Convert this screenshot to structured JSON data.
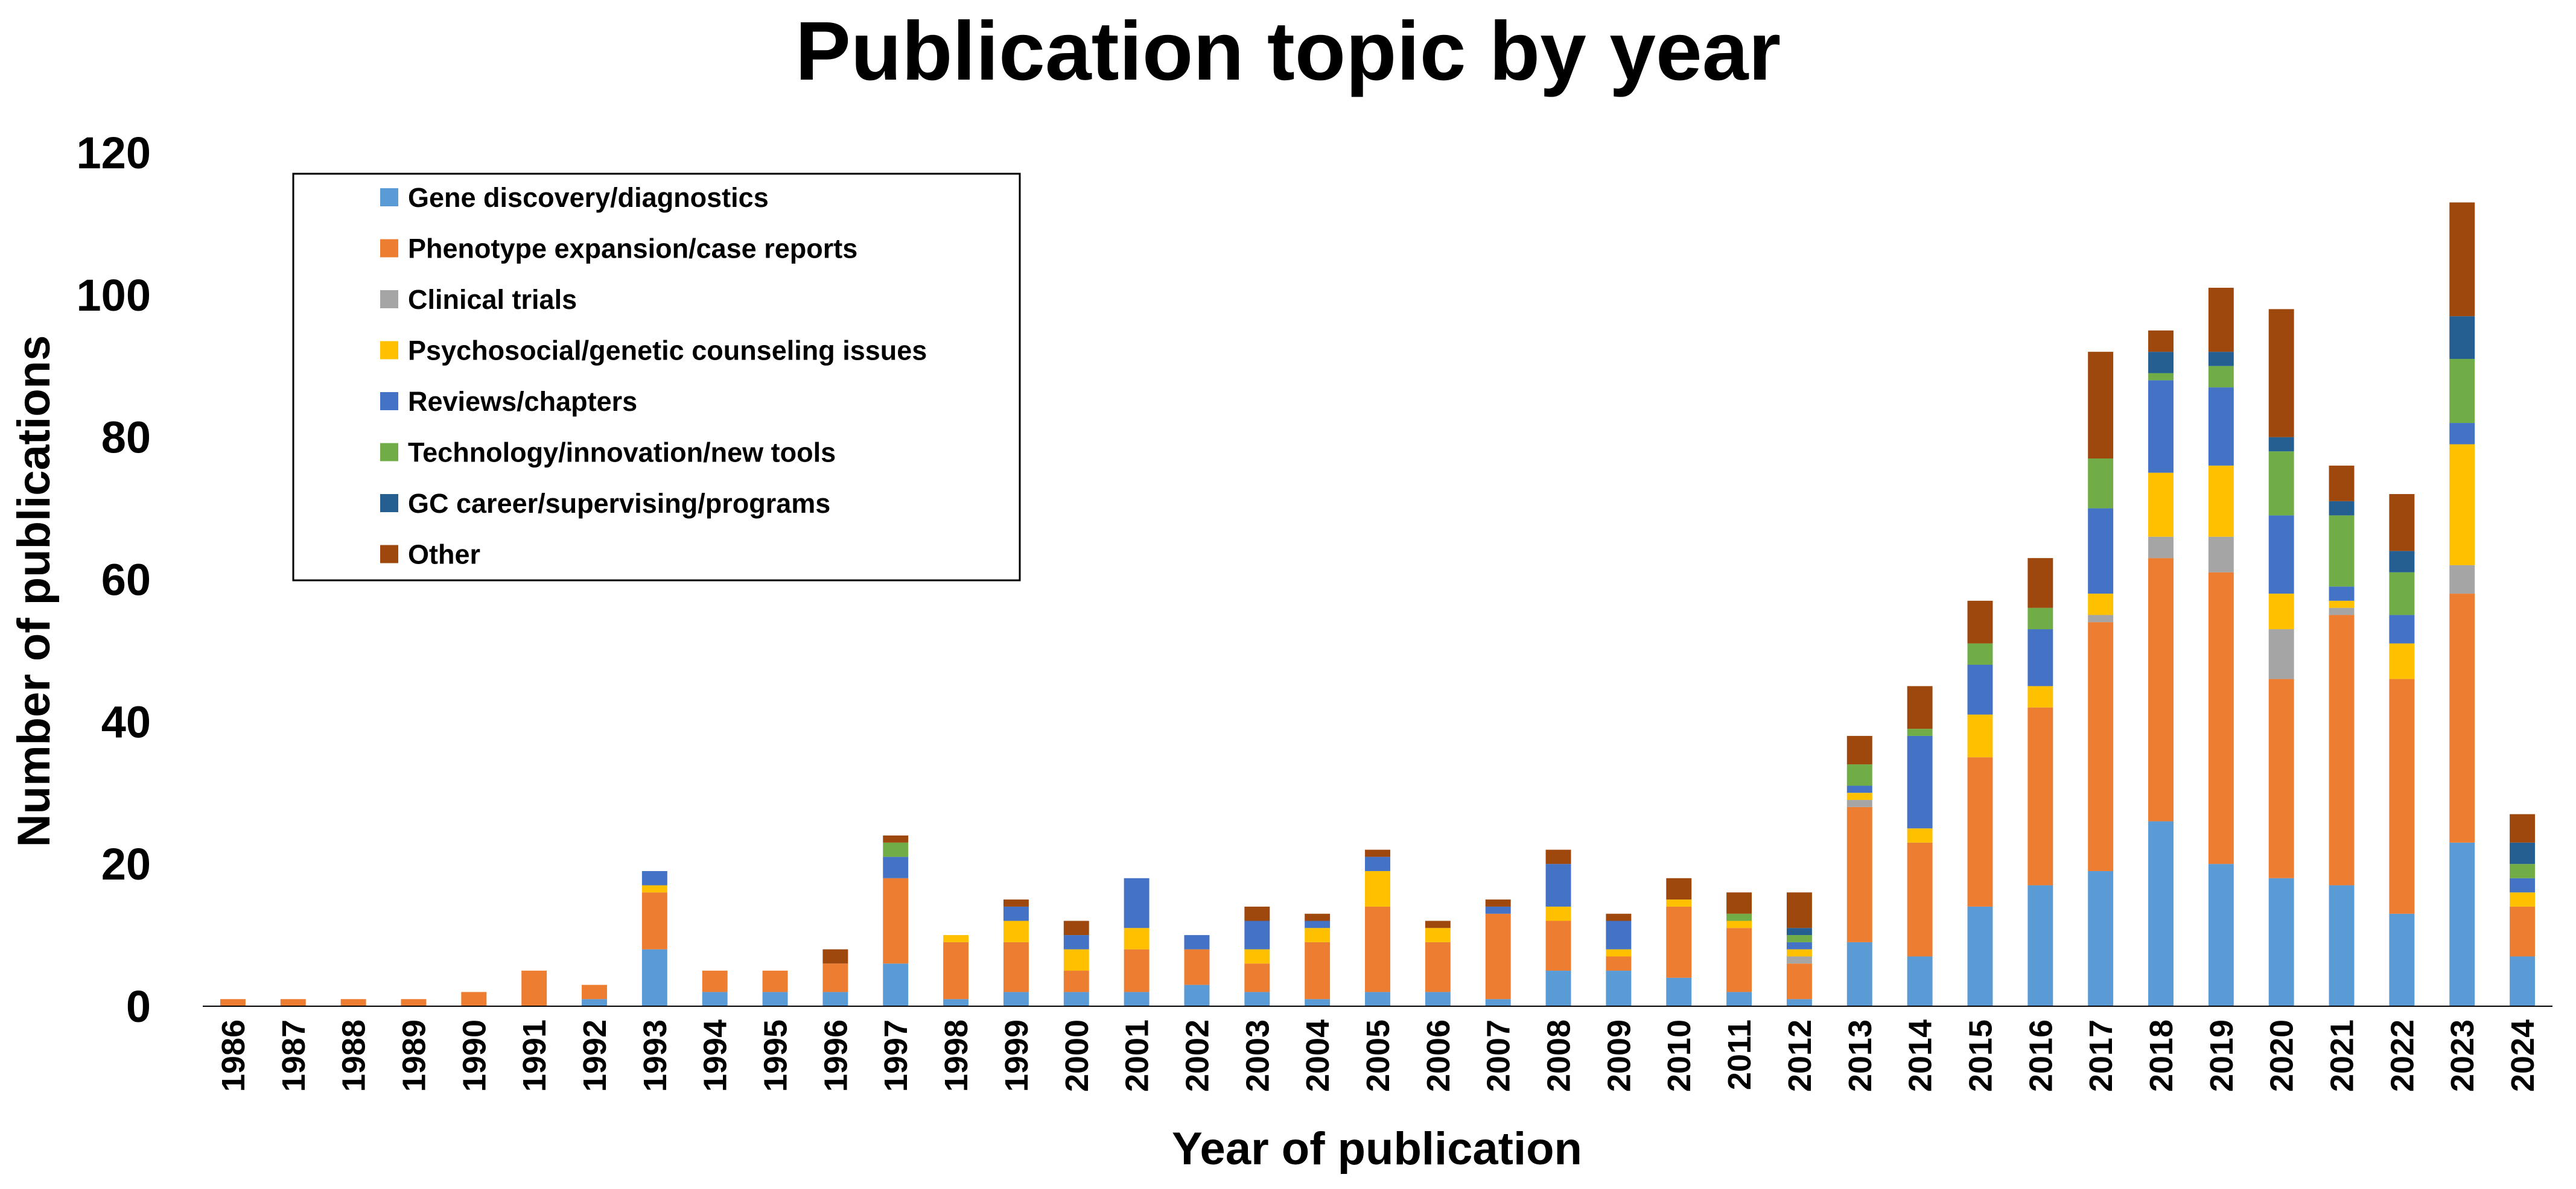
{
  "chart_data": {
    "type": "bar",
    "stacked": true,
    "title": "Publication topic by year",
    "xlabel": "Year of publication",
    "ylabel": "Number of publications",
    "ylim": [
      0,
      120
    ],
    "yticks": [
      0,
      20,
      40,
      60,
      80,
      100,
      120
    ],
    "grid": false,
    "legend_position": "top-left",
    "categories": [
      "1986",
      "1987",
      "1988",
      "1989",
      "1990",
      "1991",
      "1992",
      "1993",
      "1994",
      "1995",
      "1996",
      "1997",
      "1998",
      "1999",
      "2000",
      "2001",
      "2002",
      "2003",
      "2004",
      "2005",
      "2006",
      "2007",
      "2008",
      "2009",
      "2010",
      "2011",
      "2012",
      "2013",
      "2014",
      "2015",
      "2016",
      "2017",
      "2018",
      "2019",
      "2020",
      "2021",
      "2022",
      "2023",
      "2024"
    ],
    "series": [
      {
        "name": "Gene discovery/diagnostics",
        "color": "#5B9BD5",
        "values": [
          0,
          0,
          0,
          0,
          0,
          0,
          1,
          8,
          2,
          2,
          2,
          6,
          1,
          2,
          2,
          2,
          3,
          2,
          1,
          2,
          2,
          1,
          5,
          5,
          4,
          2,
          1,
          9,
          7,
          14,
          17,
          19,
          26,
          20,
          18,
          17,
          13,
          23,
          7
        ]
      },
      {
        "name": "Phenotype expansion/case reports",
        "color": "#ED7D31",
        "values": [
          1,
          1,
          1,
          1,
          2,
          5,
          2,
          8,
          3,
          3,
          4,
          12,
          8,
          7,
          3,
          6,
          5,
          4,
          8,
          12,
          7,
          12,
          7,
          2,
          10,
          9,
          5,
          19,
          16,
          21,
          25,
          35,
          37,
          41,
          28,
          38,
          33,
          35,
          7
        ]
      },
      {
        "name": "Clinical trials",
        "color": "#A5A5A5",
        "values": [
          0,
          0,
          0,
          0,
          0,
          0,
          0,
          0,
          0,
          0,
          0,
          0,
          0,
          0,
          0,
          0,
          0,
          0,
          0,
          0,
          0,
          0,
          0,
          0,
          0,
          0,
          1,
          1,
          0,
          0,
          0,
          1,
          3,
          5,
          7,
          1,
          0,
          4,
          0
        ]
      },
      {
        "name": "Psychosocial/genetic counseling issues",
        "color": "#FFC000",
        "values": [
          0,
          0,
          0,
          0,
          0,
          0,
          0,
          1,
          0,
          0,
          0,
          0,
          1,
          3,
          3,
          3,
          0,
          2,
          2,
          5,
          2,
          0,
          2,
          1,
          1,
          1,
          1,
          1,
          2,
          6,
          3,
          3,
          9,
          10,
          5,
          1,
          5,
          17,
          2
        ]
      },
      {
        "name": "Reviews/chapters",
        "color": "#4472C4",
        "values": [
          0,
          0,
          0,
          0,
          0,
          0,
          0,
          2,
          0,
          0,
          0,
          3,
          0,
          2,
          2,
          7,
          2,
          4,
          1,
          2,
          0,
          1,
          6,
          4,
          0,
          0,
          1,
          1,
          13,
          7,
          8,
          12,
          13,
          11,
          11,
          2,
          4,
          3,
          2
        ]
      },
      {
        "name": "Technology/innovation/new tools",
        "color": "#70AD47",
        "values": [
          0,
          0,
          0,
          0,
          0,
          0,
          0,
          0,
          0,
          0,
          0,
          2,
          0,
          0,
          0,
          0,
          0,
          0,
          0,
          0,
          0,
          0,
          0,
          0,
          0,
          1,
          1,
          3,
          1,
          3,
          3,
          7,
          1,
          3,
          9,
          10,
          6,
          9,
          2
        ]
      },
      {
        "name": "GC career/supervising/programs",
        "color": "#255E91",
        "values": [
          0,
          0,
          0,
          0,
          0,
          0,
          0,
          0,
          0,
          0,
          0,
          0,
          0,
          0,
          0,
          0,
          0,
          0,
          0,
          0,
          0,
          0,
          0,
          0,
          0,
          0,
          1,
          0,
          0,
          0,
          0,
          0,
          3,
          2,
          2,
          2,
          3,
          6,
          3
        ]
      },
      {
        "name": "Other",
        "color": "#9E480E",
        "values": [
          0,
          0,
          0,
          0,
          0,
          0,
          0,
          0,
          0,
          0,
          2,
          1,
          0,
          1,
          2,
          0,
          0,
          2,
          1,
          1,
          1,
          1,
          2,
          1,
          3,
          3,
          5,
          4,
          6,
          6,
          7,
          15,
          3,
          9,
          18,
          5,
          8,
          16,
          4
        ]
      }
    ]
  }
}
